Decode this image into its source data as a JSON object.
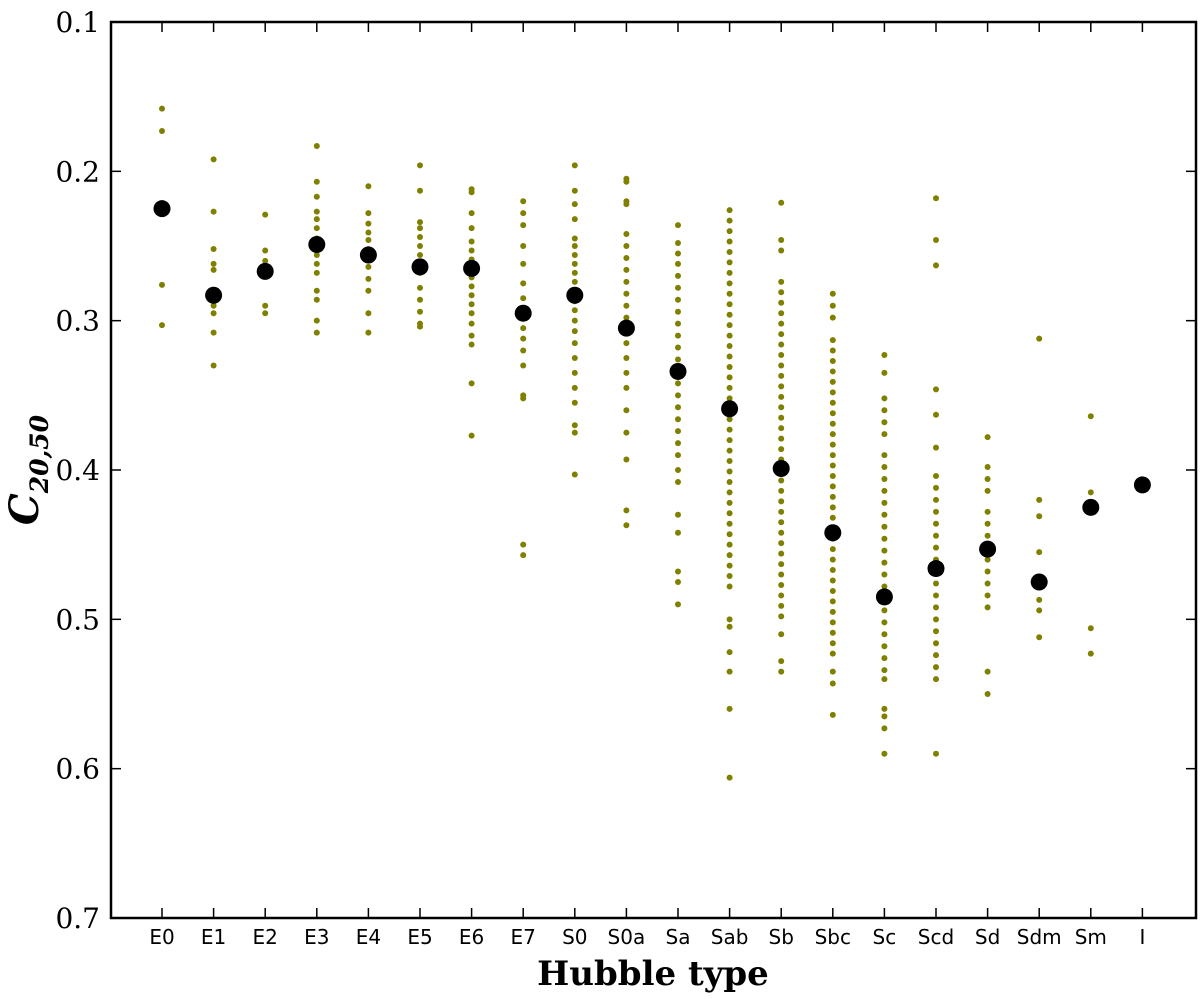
{
  "chart_data": {
    "type": "scatter",
    "title": "",
    "xlabel": "Hubble type",
    "ylabel_main": "C",
    "ylabel_sub": "20,50",
    "y_inverted": true,
    "ylim": [
      0.7,
      0.1
    ],
    "yticks": [
      "0.1",
      "0.2",
      "0.3",
      "0.4",
      "0.5",
      "0.6",
      "0.7"
    ],
    "categories": [
      "E0",
      "E1",
      "E2",
      "E3",
      "E4",
      "E5",
      "E6",
      "E7",
      "S0",
      "S0a",
      "Sa",
      "Sab",
      "Sb",
      "Sbc",
      "Sc",
      "Scd",
      "Sd",
      "Sdm",
      "Sm",
      "I"
    ],
    "grid": false,
    "colors": {
      "points": "#808000",
      "means": "#000000"
    },
    "series": [
      {
        "kind": "individual",
        "points": [
          [
            0.158,
            0.173,
            0.276,
            0.303
          ],
          [
            0.192,
            0.227,
            0.252,
            0.262,
            0.266,
            0.283,
            0.29,
            0.295,
            0.308,
            0.33
          ],
          [
            0.229,
            0.253,
            0.26,
            0.267,
            0.29,
            0.295
          ],
          [
            0.183,
            0.207,
            0.217,
            0.227,
            0.232,
            0.238,
            0.245,
            0.25,
            0.256,
            0.262,
            0.268,
            0.28,
            0.286,
            0.3,
            0.308
          ],
          [
            0.21,
            0.228,
            0.235,
            0.241,
            0.246,
            0.252,
            0.258,
            0.264,
            0.272,
            0.28,
            0.295,
            0.308
          ],
          [
            0.196,
            0.213,
            0.234,
            0.238,
            0.244,
            0.25,
            0.256,
            0.262,
            0.268,
            0.278,
            0.286,
            0.294,
            0.302,
            0.304
          ],
          [
            0.212,
            0.214,
            0.228,
            0.238,
            0.247,
            0.253,
            0.259,
            0.265,
            0.271,
            0.277,
            0.283,
            0.289,
            0.295,
            0.302,
            0.31,
            0.316,
            0.342,
            0.377
          ],
          [
            0.22,
            0.228,
            0.236,
            0.25,
            0.262,
            0.275,
            0.285,
            0.295,
            0.305,
            0.312,
            0.32,
            0.33,
            0.35,
            0.352,
            0.45,
            0.457
          ],
          [
            0.196,
            0.213,
            0.222,
            0.232,
            0.245,
            0.25,
            0.256,
            0.262,
            0.268,
            0.274,
            0.28,
            0.287,
            0.293,
            0.3,
            0.307,
            0.315,
            0.325,
            0.335,
            0.345,
            0.355,
            0.37,
            0.375,
            0.403
          ],
          [
            0.205,
            0.207,
            0.22,
            0.222,
            0.242,
            0.25,
            0.258,
            0.266,
            0.274,
            0.282,
            0.29,
            0.298,
            0.306,
            0.315,
            0.325,
            0.335,
            0.345,
            0.36,
            0.375,
            0.393,
            0.427,
            0.437
          ],
          [
            0.236,
            0.248,
            0.255,
            0.262,
            0.27,
            0.278,
            0.286,
            0.294,
            0.302,
            0.31,
            0.318,
            0.326,
            0.334,
            0.342,
            0.35,
            0.358,
            0.366,
            0.374,
            0.382,
            0.39,
            0.4,
            0.408,
            0.43,
            0.442,
            0.468,
            0.475,
            0.49
          ],
          [
            0.226,
            0.233,
            0.24,
            0.247,
            0.254,
            0.261,
            0.268,
            0.275,
            0.282,
            0.289,
            0.296,
            0.303,
            0.31,
            0.317,
            0.324,
            0.331,
            0.338,
            0.345,
            0.352,
            0.359,
            0.366,
            0.373,
            0.38,
            0.387,
            0.394,
            0.401,
            0.408,
            0.415,
            0.422,
            0.429,
            0.436,
            0.443,
            0.45,
            0.457,
            0.464,
            0.471,
            0.478,
            0.5,
            0.505,
            0.522,
            0.535,
            0.56,
            0.606
          ],
          [
            0.221,
            0.246,
            0.253,
            0.274,
            0.281,
            0.288,
            0.295,
            0.302,
            0.309,
            0.316,
            0.323,
            0.33,
            0.337,
            0.344,
            0.351,
            0.358,
            0.365,
            0.372,
            0.379,
            0.386,
            0.393,
            0.4,
            0.407,
            0.414,
            0.421,
            0.428,
            0.435,
            0.442,
            0.449,
            0.456,
            0.463,
            0.47,
            0.477,
            0.484,
            0.491,
            0.498,
            0.51,
            0.528,
            0.535
          ],
          [
            0.282,
            0.29,
            0.298,
            0.313,
            0.32,
            0.327,
            0.334,
            0.341,
            0.348,
            0.355,
            0.362,
            0.369,
            0.376,
            0.383,
            0.39,
            0.397,
            0.404,
            0.411,
            0.418,
            0.425,
            0.432,
            0.439,
            0.446,
            0.453,
            0.46,
            0.467,
            0.474,
            0.481,
            0.488,
            0.495,
            0.502,
            0.509,
            0.516,
            0.523,
            0.535,
            0.543,
            0.564
          ],
          [
            0.323,
            0.335,
            0.352,
            0.36,
            0.368,
            0.376,
            0.39,
            0.398,
            0.406,
            0.414,
            0.422,
            0.43,
            0.438,
            0.446,
            0.454,
            0.462,
            0.47,
            0.478,
            0.486,
            0.494,
            0.502,
            0.51,
            0.518,
            0.526,
            0.534,
            0.54,
            0.56,
            0.565,
            0.573,
            0.59
          ],
          [
            0.218,
            0.246,
            0.263,
            0.346,
            0.363,
            0.385,
            0.404,
            0.412,
            0.42,
            0.428,
            0.436,
            0.444,
            0.452,
            0.46,
            0.468,
            0.476,
            0.484,
            0.492,
            0.5,
            0.508,
            0.516,
            0.524,
            0.532,
            0.54,
            0.59
          ],
          [
            0.378,
            0.398,
            0.406,
            0.414,
            0.428,
            0.436,
            0.444,
            0.452,
            0.46,
            0.468,
            0.476,
            0.484,
            0.492,
            0.535,
            0.55
          ],
          [
            0.312,
            0.42,
            0.431,
            0.455,
            0.487,
            0.494,
            0.512
          ],
          [
            0.364,
            0.415,
            0.506,
            0.523
          ],
          []
        ]
      },
      {
        "kind": "mean",
        "values": [
          0.225,
          0.283,
          0.267,
          0.249,
          0.256,
          0.264,
          0.265,
          0.295,
          0.283,
          0.305,
          0.334,
          0.359,
          0.399,
          0.442,
          0.485,
          0.466,
          0.453,
          0.475,
          0.425,
          0.41
        ]
      }
    ]
  }
}
